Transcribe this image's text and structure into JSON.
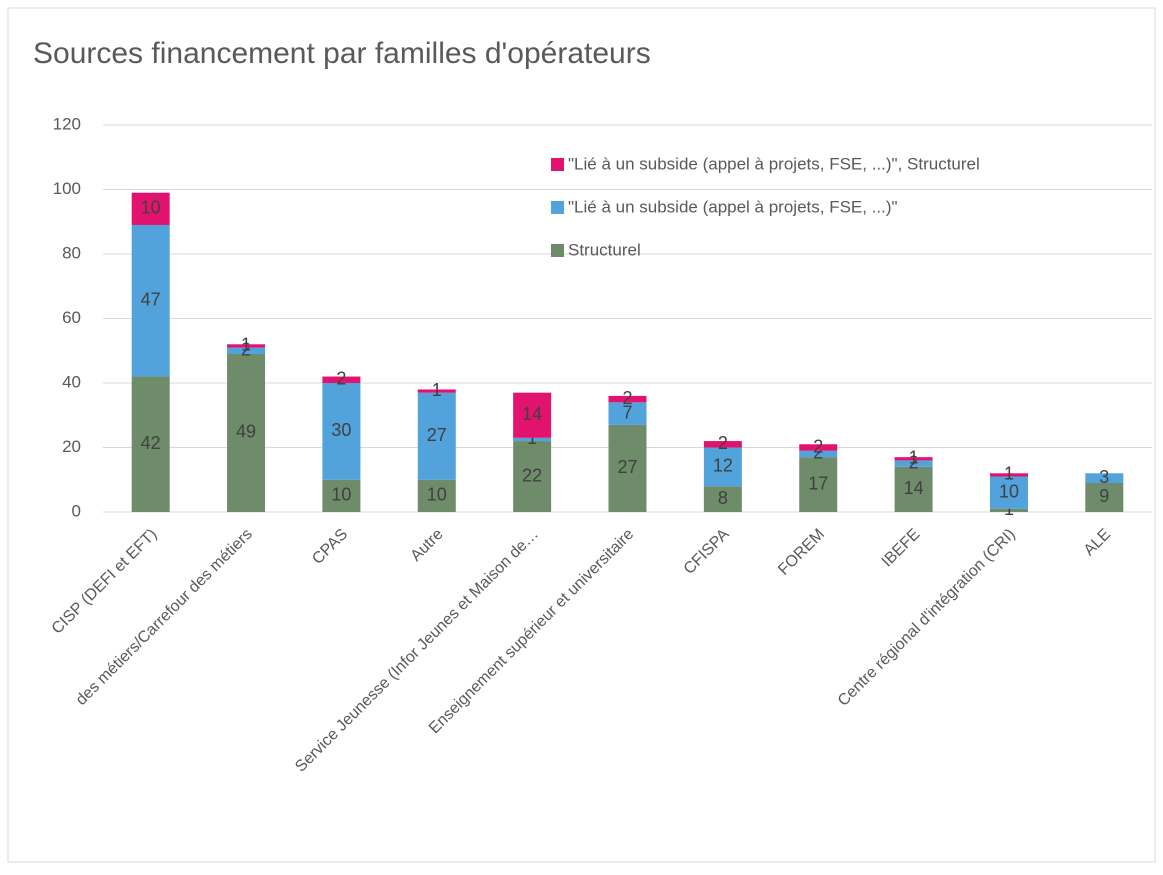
{
  "chart_data": {
    "type": "stacked_bar",
    "title": "Sources financement par familles d'opérateurs",
    "categories": [
      "CISP (DEFI et EFT)",
      "des métiers/Carrefour des métiers",
      "CPAS",
      "Autre",
      "Service Jeunesse (Infor Jeunes et Maison de…",
      "Enseignement supérieur et universitaire",
      "CFISPA",
      "FOREM",
      "IBEFE",
      "Centre régional d'intégration (CRI)",
      "ALE"
    ],
    "series": [
      {
        "name": "Structurel",
        "color": "#6e8b6a",
        "values": [
          42,
          49,
          10,
          10,
          22,
          27,
          8,
          17,
          14,
          1,
          9
        ]
      },
      {
        "name": "\"Lié à un subside (appel à projets, FSE, ...)\"",
        "color": "#52a2dc",
        "values": [
          47,
          2,
          30,
          27,
          1,
          7,
          12,
          2,
          2,
          10,
          3
        ]
      },
      {
        "name": "\"Lié à un subside (appel à projets, FSE, ...)\", Structurel",
        "color": "#e2136e",
        "values": [
          10,
          1,
          2,
          1,
          14,
          2,
          2,
          2,
          1,
          1,
          null
        ]
      }
    ],
    "ylim": [
      0,
      120
    ],
    "yticks": [
      0,
      20,
      40,
      60,
      80,
      100,
      120
    ],
    "grid": true
  }
}
